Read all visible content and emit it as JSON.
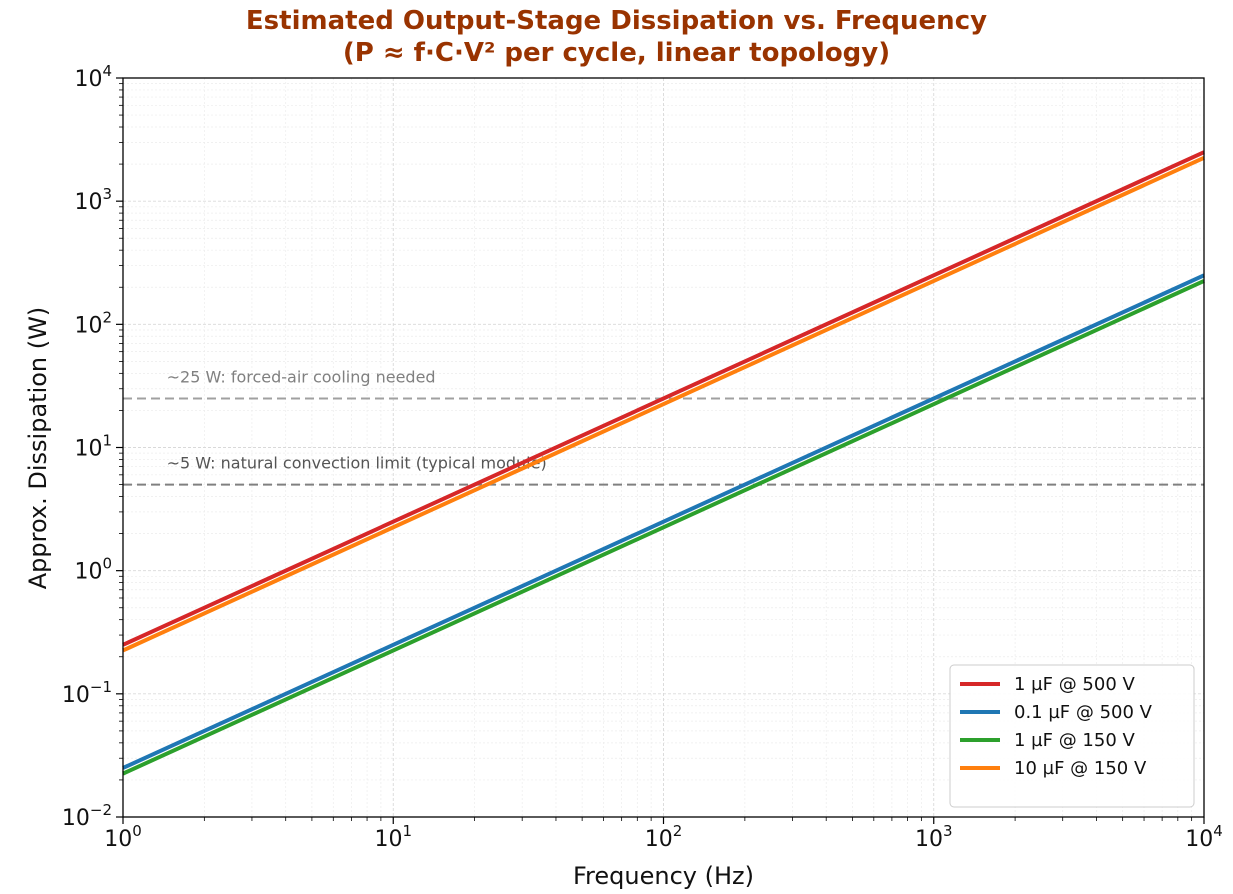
{
  "chart_data": {
    "type": "line",
    "title_line1": "Estimated Output-Stage Dissipation vs. Frequency",
    "title_line2": "(P ≈ f·C·V² per cycle, linear topology)",
    "xlabel": "Frequency (Hz)",
    "ylabel": "Approx. Dissipation (W)",
    "x_scale": "log",
    "y_scale": "log",
    "xlim": [
      1,
      10000
    ],
    "ylim": [
      0.01,
      10000
    ],
    "grid": true,
    "legend_position": "lower-right",
    "x_ticks": [
      {
        "value": 1,
        "base": "10",
        "exp": "0"
      },
      {
        "value": 10,
        "base": "10",
        "exp": "1"
      },
      {
        "value": 100,
        "base": "10",
        "exp": "2"
      },
      {
        "value": 1000,
        "base": "10",
        "exp": "3"
      },
      {
        "value": 10000,
        "base": "10",
        "exp": "4"
      }
    ],
    "y_ticks": [
      {
        "value": 0.01,
        "base": "10",
        "exp": "−2"
      },
      {
        "value": 0.1,
        "base": "10",
        "exp": "−1"
      },
      {
        "value": 1,
        "base": "10",
        "exp": "0"
      },
      {
        "value": 10,
        "base": "10",
        "exp": "1"
      },
      {
        "value": 100,
        "base": "10",
        "exp": "2"
      },
      {
        "value": 1000,
        "base": "10",
        "exp": "3"
      },
      {
        "value": 10000,
        "base": "10",
        "exp": "4"
      }
    ],
    "series": [
      {
        "name": "1 µF @ 500 V",
        "color": "#d62728",
        "x": [
          1,
          10000
        ],
        "y": [
          0.25,
          2500
        ]
      },
      {
        "name": "0.1 µF @ 500 V",
        "color": "#1f77b4",
        "x": [
          1,
          10000
        ],
        "y": [
          0.025,
          250
        ]
      },
      {
        "name": "1 µF @ 150 V",
        "color": "#2ca02c",
        "x": [
          1,
          10000
        ],
        "y": [
          0.0225,
          225
        ]
      },
      {
        "name": "10 µF @ 150 V",
        "color": "#ff7f0e",
        "x": [
          1,
          10000
        ],
        "y": [
          0.225,
          2250
        ]
      }
    ],
    "reference_lines": [
      {
        "y": 25,
        "label": "~25 W: forced-air cooling needed",
        "color": "#a0a0a0",
        "text_color": "#808080"
      },
      {
        "y": 5,
        "label": "~5 W: natural convection limit (typical module)",
        "color": "#808080",
        "text_color": "#555555"
      }
    ]
  }
}
